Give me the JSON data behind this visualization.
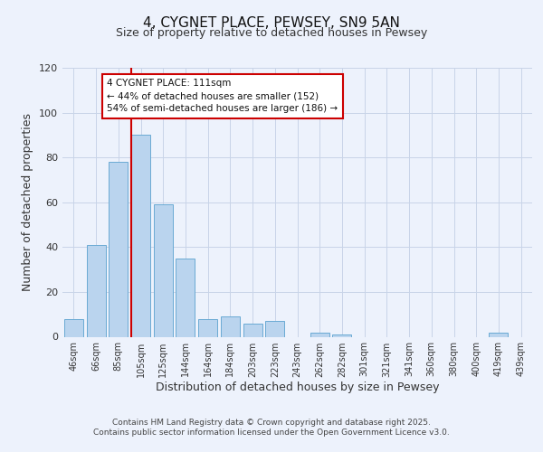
{
  "title1": "4, CYGNET PLACE, PEWSEY, SN9 5AN",
  "title2": "Size of property relative to detached houses in Pewsey",
  "xlabel": "Distribution of detached houses by size in Pewsey",
  "ylabel": "Number of detached properties",
  "categories": [
    "46sqm",
    "66sqm",
    "85sqm",
    "105sqm",
    "125sqm",
    "144sqm",
    "164sqm",
    "184sqm",
    "203sqm",
    "223sqm",
    "243sqm",
    "262sqm",
    "282sqm",
    "301sqm",
    "321sqm",
    "341sqm",
    "360sqm",
    "380sqm",
    "400sqm",
    "419sqm",
    "439sqm"
  ],
  "values": [
    8,
    41,
    78,
    90,
    59,
    35,
    8,
    9,
    6,
    7,
    0,
    2,
    1,
    0,
    0,
    0,
    0,
    0,
    0,
    2,
    0
  ],
  "bar_color": "#bad4ee",
  "bar_edge_color": "#6aaad4",
  "vline_color": "#cc0000",
  "annotation_title": "4 CYGNET PLACE: 111sqm",
  "annotation_line1": "← 44% of detached houses are smaller (152)",
  "annotation_line2": "54% of semi-detached houses are larger (186) →",
  "annotation_box_color": "#ffffff",
  "annotation_box_edge": "#cc0000",
  "ylim": [
    0,
    120
  ],
  "yticks": [
    0,
    20,
    40,
    60,
    80,
    100,
    120
  ],
  "bg_color": "#edf2fc",
  "grid_color": "#c8d4e8",
  "footer1": "Contains HM Land Registry data © Crown copyright and database right 2025.",
  "footer2": "Contains public sector information licensed under the Open Government Licence v3.0.",
  "title_fontsize": 11,
  "subtitle_fontsize": 9,
  "axis_label_fontsize": 9,
  "tick_fontsize": 7,
  "ann_fontsize": 7.5
}
